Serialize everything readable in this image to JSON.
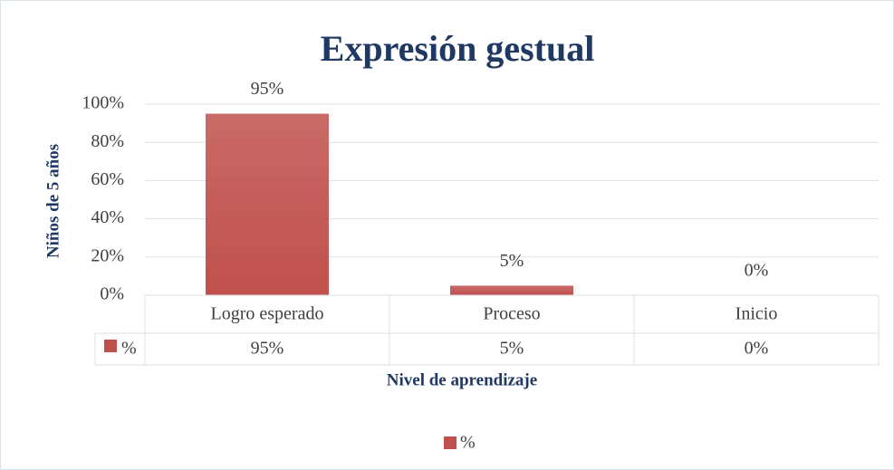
{
  "chart_data": {
    "type": "bar",
    "title": "Expresión gestual",
    "y_label": "Niños de 5 años",
    "x_label": "Nivel de aprendizaje",
    "categories": [
      "Logro esperado",
      "Proceso",
      "Inicio"
    ],
    "series": [
      {
        "name": "%",
        "color": "#c0504d",
        "values": [
          95,
          5,
          0
        ],
        "value_labels": [
          "95%",
          "5%",
          "0%"
        ]
      }
    ],
    "ylim": [
      0,
      100
    ],
    "yticks": [
      {
        "value": 0,
        "label": "0%"
      },
      {
        "value": 20,
        "label": "20%"
      },
      {
        "value": 40,
        "label": "40%"
      },
      {
        "value": 60,
        "label": "60%"
      },
      {
        "value": 80,
        "label": "80%"
      },
      {
        "value": 100,
        "label": "100%"
      }
    ],
    "grid": true,
    "legend": "bottom"
  }
}
